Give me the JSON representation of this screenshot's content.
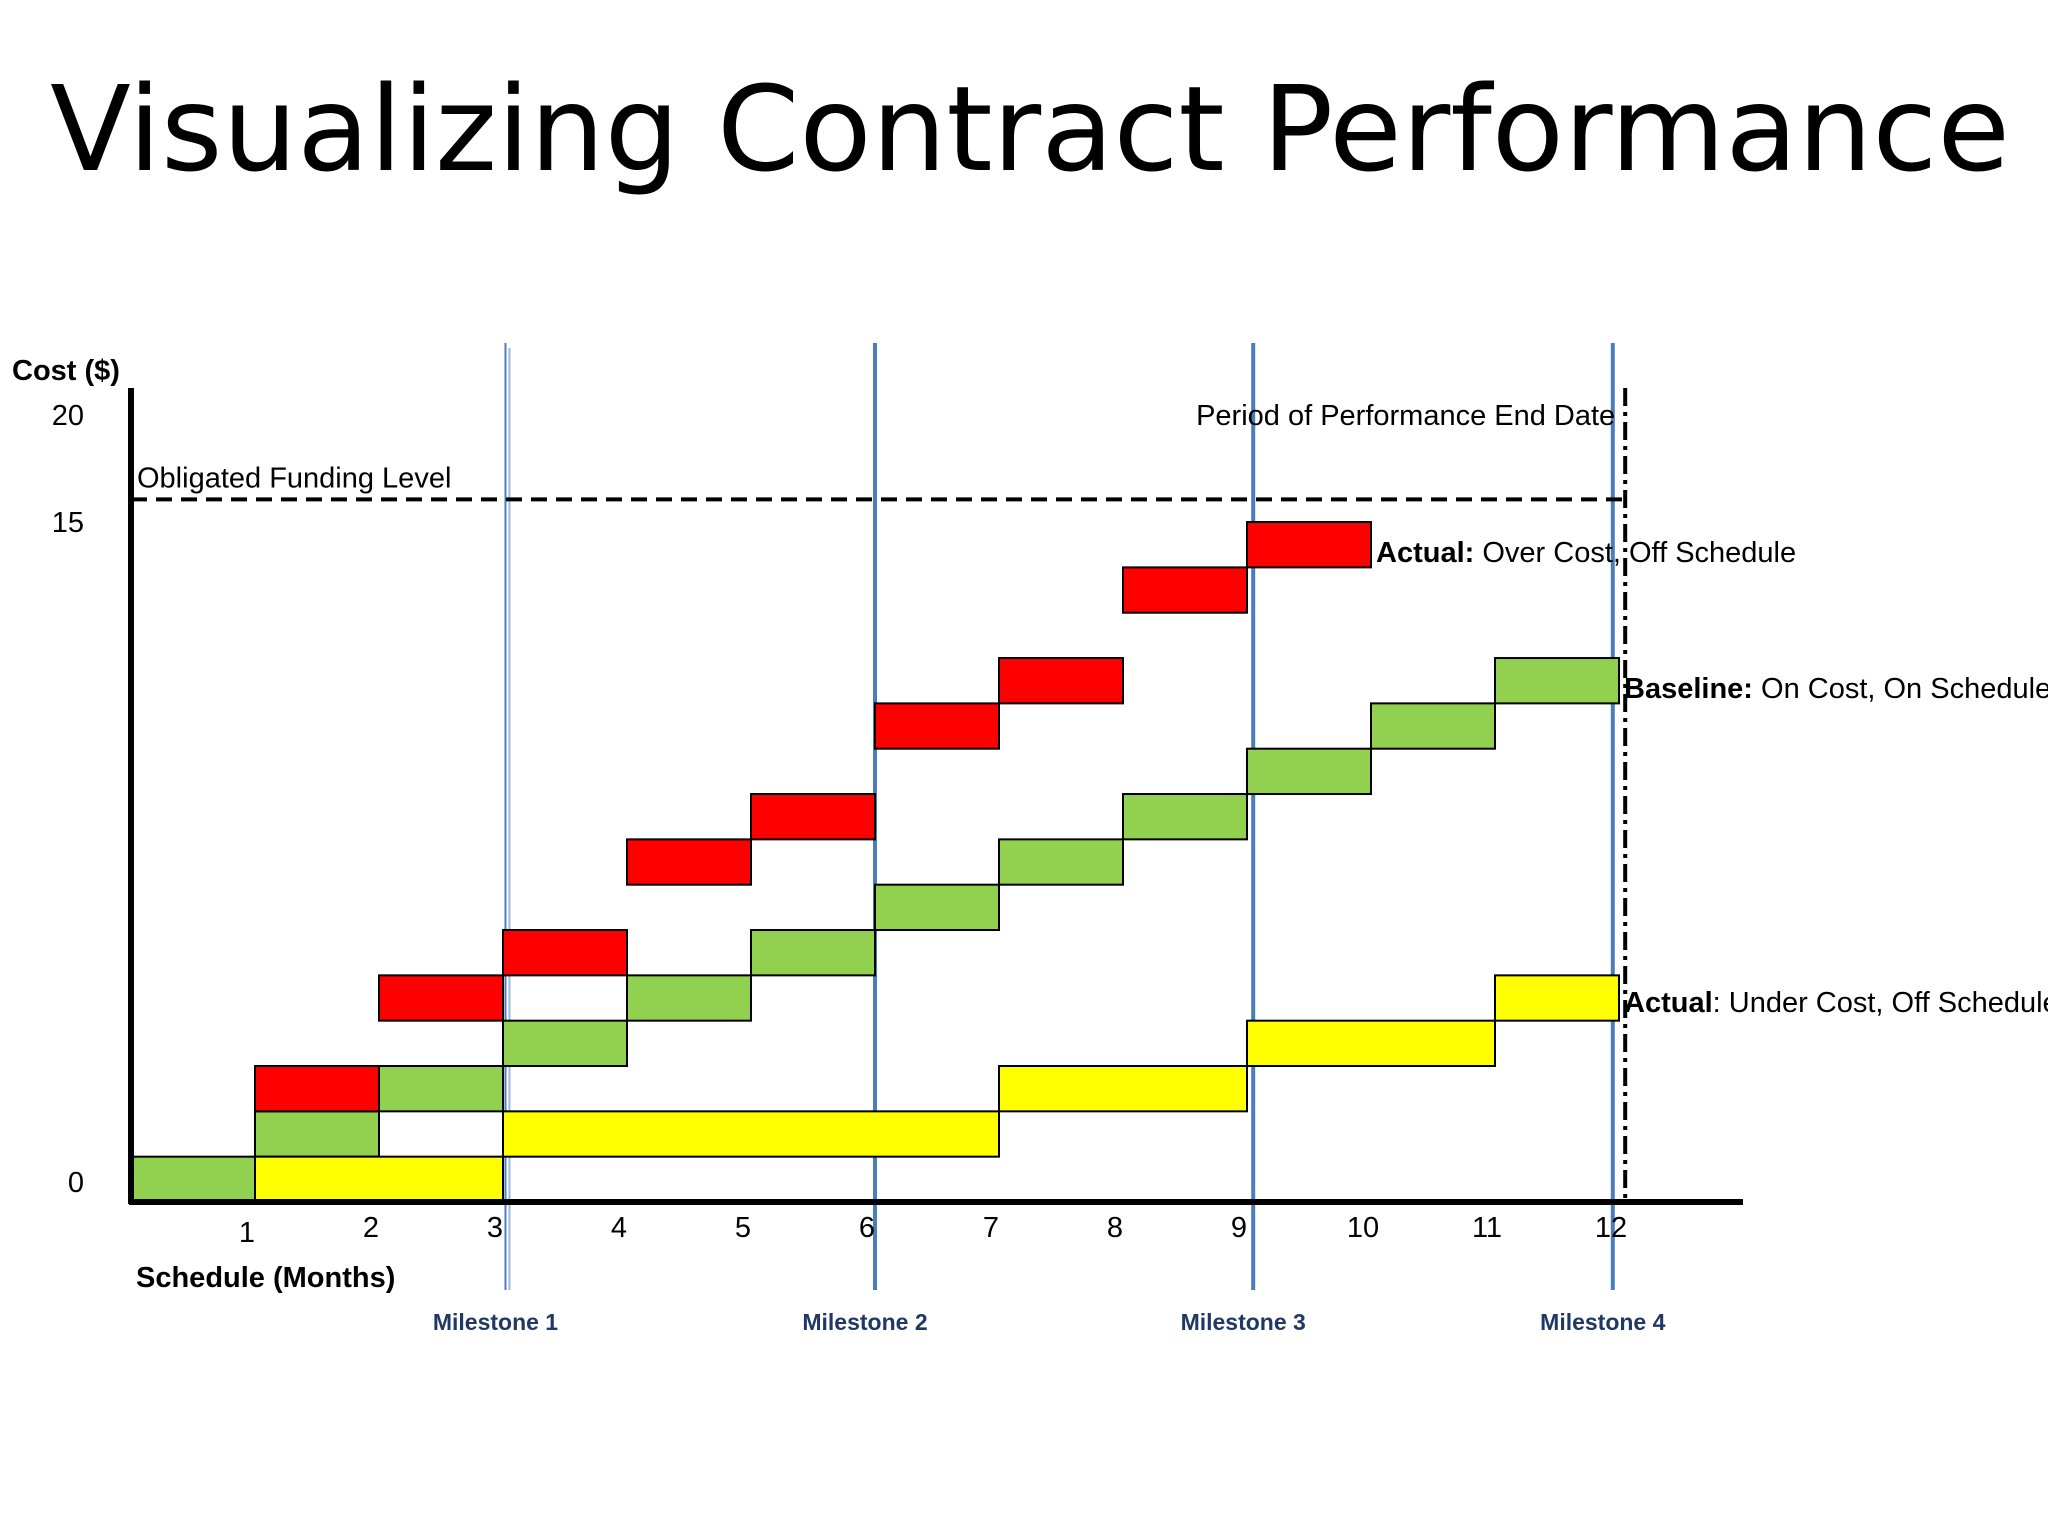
{
  "page": {
    "title": "Visualizing Contract Performance"
  },
  "chart_data": {
    "type": "bar",
    "title": "Visualizing Contract Performance",
    "xlabel": "Schedule (Months)",
    "ylabel": "Cost ($)",
    "xlim": [
      0,
      13
    ],
    "ylim": [
      0,
      20
    ],
    "x_ticks": [
      "1",
      "2",
      "3",
      "4",
      "5",
      "6",
      "7",
      "8",
      "9",
      "10",
      "11",
      "12"
    ],
    "y_ticks": [
      "0",
      "15",
      "20"
    ],
    "y_tick_values": [
      0,
      15,
      20
    ],
    "colors": {
      "baseline": "#92D050",
      "over": "#FF0000",
      "under": "#FFFF00",
      "milestone": "#4A7EBB",
      "milestone_text": "#1F3864"
    },
    "funding": {
      "value": 15.5,
      "label": "Obligated Funding Level"
    },
    "pop_end": {
      "x": 12.05,
      "label": "Period of Performance End Date"
    },
    "milestones": [
      {
        "x": 3.02,
        "label": "Milestone 1"
      },
      {
        "x": 6.0,
        "label": "Milestone 2"
      },
      {
        "x": 9.05,
        "label": "Milestone 3"
      },
      {
        "x": 11.95,
        "label": "Milestone 4"
      }
    ],
    "series": [
      {
        "key": "baseline",
        "bold": "Baseline:",
        "rest": " On Cost, On Schedule",
        "segments": [
          {
            "x0": 0,
            "x1": 1,
            "y0": 0,
            "y1": 1
          },
          {
            "x0": 1,
            "x1": 2,
            "y0": 1,
            "y1": 2
          },
          {
            "x0": 2,
            "x1": 3,
            "y0": 2,
            "y1": 3
          },
          {
            "x0": 3,
            "x1": 4,
            "y0": 3,
            "y1": 4
          },
          {
            "x0": 4,
            "x1": 5,
            "y0": 4,
            "y1": 5
          },
          {
            "x0": 5,
            "x1": 6,
            "y0": 5,
            "y1": 6
          },
          {
            "x0": 6,
            "x1": 7,
            "y0": 6,
            "y1": 7
          },
          {
            "x0": 7,
            "x1": 8,
            "y0": 7,
            "y1": 8
          },
          {
            "x0": 8,
            "x1": 9,
            "y0": 8,
            "y1": 9
          },
          {
            "x0": 9,
            "x1": 10,
            "y0": 9,
            "y1": 10
          },
          {
            "x0": 10,
            "x1": 11,
            "y0": 10,
            "y1": 11
          },
          {
            "x0": 11,
            "x1": 12,
            "y0": 11,
            "y1": 12
          }
        ]
      },
      {
        "key": "over",
        "bold": "Actual:",
        "rest": " Over Cost, Off Schedule",
        "segments": [
          {
            "x0": 1,
            "x1": 2,
            "y0": 2,
            "y1": 3
          },
          {
            "x0": 2,
            "x1": 3,
            "y0": 4,
            "y1": 5
          },
          {
            "x0": 3,
            "x1": 4,
            "y0": 5,
            "y1": 6
          },
          {
            "x0": 4,
            "x1": 5,
            "y0": 7,
            "y1": 8
          },
          {
            "x0": 5,
            "x1": 6,
            "y0": 8,
            "y1": 9
          },
          {
            "x0": 6,
            "x1": 7,
            "y0": 10,
            "y1": 11
          },
          {
            "x0": 7,
            "x1": 8,
            "y0": 11,
            "y1": 12
          },
          {
            "x0": 8,
            "x1": 9,
            "y0": 13,
            "y1": 14
          },
          {
            "x0": 9,
            "x1": 10,
            "y0": 14,
            "y1": 15
          }
        ]
      },
      {
        "key": "under",
        "bold": "Actual",
        "rest": ": Under Cost, Off Schedule",
        "segments": [
          {
            "x0": 1,
            "x1": 3,
            "y0": 0,
            "y1": 1
          },
          {
            "x0": 3,
            "x1": 7,
            "y0": 1,
            "y1": 2
          },
          {
            "x0": 7,
            "x1": 9,
            "y0": 2,
            "y1": 3
          },
          {
            "x0": 9,
            "x1": 11,
            "y0": 3,
            "y1": 4
          },
          {
            "x0": 11,
            "x1": 12,
            "y0": 4,
            "y1": 5
          }
        ]
      }
    ]
  }
}
